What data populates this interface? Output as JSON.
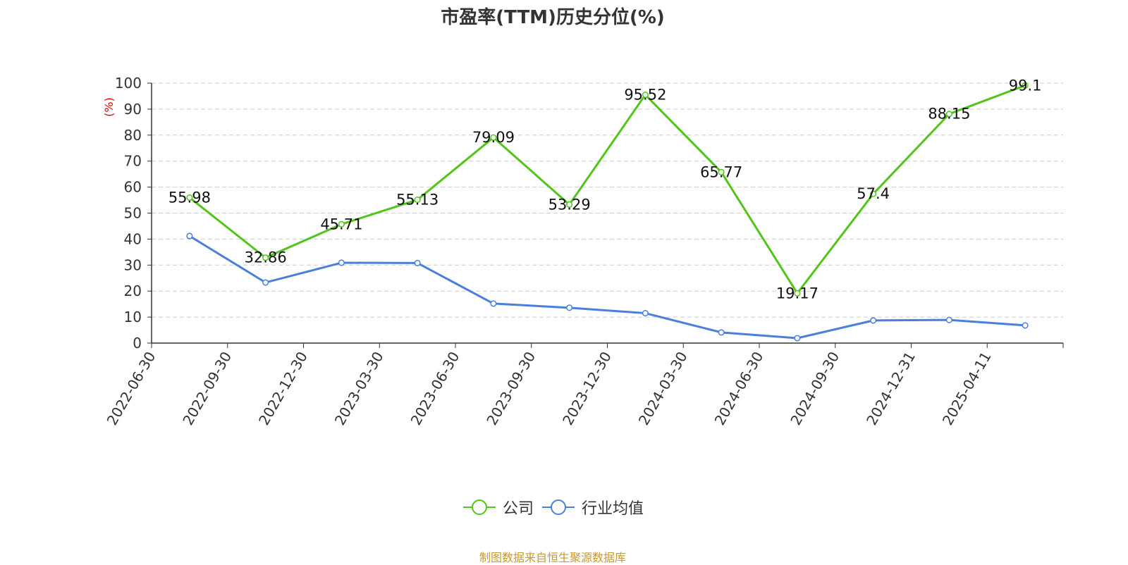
{
  "chart_data": {
    "type": "line",
    "title": "市盈率(TTM)历史分位(%)",
    "ylabel": "(%)",
    "xlabel": "",
    "ylim": [
      0,
      100
    ],
    "yticks": [
      0,
      10,
      20,
      30,
      40,
      50,
      60,
      70,
      80,
      90,
      100
    ],
    "categories": [
      "2022-06-30",
      "2022-09-30",
      "2022-12-30",
      "2023-03-30",
      "2023-06-30",
      "2023-09-30",
      "2023-12-30",
      "2024-03-30",
      "2024-06-30",
      "2024-09-30",
      "2024-12-31",
      "2025-04-11"
    ],
    "grid": true,
    "legend_position": "bottom",
    "series": [
      {
        "name": "公司",
        "color": "#52c41a",
        "show_labels": true,
        "values": [
          55.98,
          32.86,
          45.71,
          55.13,
          79.09,
          53.29,
          95.52,
          65.77,
          19.17,
          57.4,
          88.15,
          99.1
        ]
      },
      {
        "name": "行业均值",
        "color": "#4a7fdc",
        "show_labels": false,
        "values": [
          41.2,
          23.3,
          30.9,
          30.8,
          15.2,
          13.6,
          11.5,
          4.1,
          1.9,
          8.7,
          8.9,
          6.8
        ]
      }
    ]
  },
  "source": "制图数据来自恒生聚源数据库"
}
